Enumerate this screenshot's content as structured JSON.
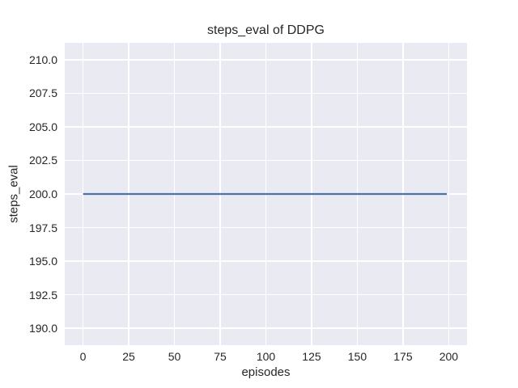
{
  "chart_data": {
    "type": "line",
    "title": "steps_eval of DDPG",
    "xlabel": "episodes",
    "ylabel": "steps_eval",
    "series": [
      {
        "name": "steps_eval",
        "color": "#4c72b0",
        "x": [
          0,
          199
        ],
        "y": [
          200,
          200
        ]
      }
    ],
    "xlim": [
      -10,
      210
    ],
    "ylim": [
      188.75,
      211.25
    ],
    "xticks": {
      "values": [
        0,
        25,
        50,
        75,
        100,
        125,
        150,
        175,
        200
      ],
      "labels": [
        "0",
        "25",
        "50",
        "75",
        "100",
        "125",
        "150",
        "175",
        "200"
      ]
    },
    "yticks": {
      "values": [
        190,
        192.5,
        195,
        197.5,
        200,
        202.5,
        205,
        207.5,
        210
      ],
      "labels": [
        "190.0",
        "192.5",
        "195.0",
        "197.5",
        "200.0",
        "202.5",
        "205.0",
        "207.5",
        "210.0"
      ]
    },
    "grid": true,
    "legend": false,
    "style": {
      "figure_bg": "#ffffff",
      "plot_bg": "#eaeaf2",
      "grid_color": "#ffffff",
      "text_color": "#262626",
      "line_width": 2.2
    }
  }
}
